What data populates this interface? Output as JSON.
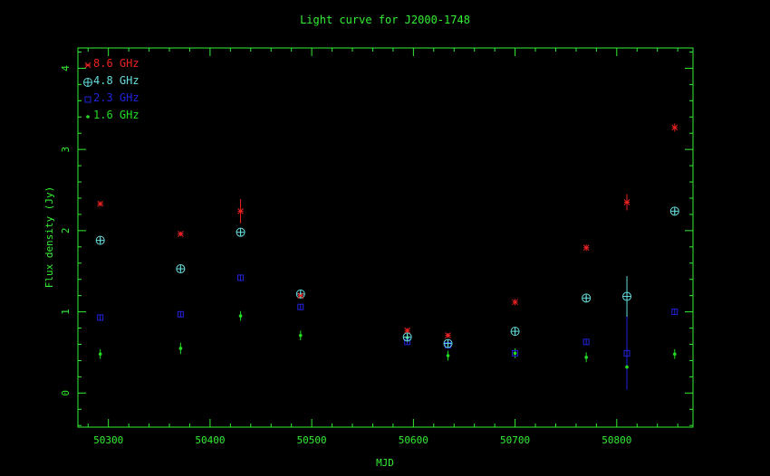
{
  "chart_data": {
    "type": "scatter",
    "title": "Light curve for J2000-1748",
    "xlabel": "MJD",
    "ylabel": "Flux density (Jy)",
    "xlim": [
      50270,
      50875
    ],
    "ylim": [
      -0.42,
      4.25
    ],
    "xticks": [
      50300,
      50400,
      50500,
      50600,
      50700,
      50800
    ],
    "yticks": [
      0,
      1,
      2,
      3,
      4
    ],
    "legend_position": "top-left",
    "series": [
      {
        "name": "8.6 GHz",
        "marker": "asterisk",
        "color": "#ee2222",
        "points": [
          {
            "x": 50292,
            "y": 2.33,
            "err": 0.03
          },
          {
            "x": 50371,
            "y": 1.96,
            "err": 0.03
          },
          {
            "x": 50430,
            "y": 2.24,
            "err": 0.15
          },
          {
            "x": 50489,
            "y": 1.2,
            "err": 0.03
          },
          {
            "x": 50594,
            "y": 0.77,
            "err": 0.03
          },
          {
            "x": 50634,
            "y": 0.71,
            "err": 0.03
          },
          {
            "x": 50700,
            "y": 1.12,
            "err": 0.04
          },
          {
            "x": 50770,
            "y": 1.79,
            "err": 0.04
          },
          {
            "x": 50810,
            "y": 2.35,
            "err": 0.1
          },
          {
            "x": 50857,
            "y": 3.27,
            "err": 0.05
          }
        ]
      },
      {
        "name": "4.8 GHz",
        "marker": "circle-cross",
        "color": "#66dddd",
        "points": [
          {
            "x": 50292,
            "y": 1.88,
            "err": 0.03
          },
          {
            "x": 50371,
            "y": 1.53,
            "err": 0.03
          },
          {
            "x": 50430,
            "y": 1.98,
            "err": 0.03
          },
          {
            "x": 50489,
            "y": 1.22,
            "err": 0.03
          },
          {
            "x": 50594,
            "y": 0.69,
            "err": 0.03
          },
          {
            "x": 50634,
            "y": 0.61,
            "err": 0.03
          },
          {
            "x": 50700,
            "y": 0.76,
            "err": 0.03
          },
          {
            "x": 50770,
            "y": 1.17,
            "err": 0.03
          },
          {
            "x": 50810,
            "y": 1.19,
            "err": 0.25
          },
          {
            "x": 50857,
            "y": 2.24,
            "err": 0.03
          }
        ]
      },
      {
        "name": "2.3 GHz",
        "marker": "square",
        "color": "#2222dd",
        "points": [
          {
            "x": 50292,
            "y": 0.93,
            "err": 0.03
          },
          {
            "x": 50371,
            "y": 0.97,
            "err": 0.03
          },
          {
            "x": 50430,
            "y": 1.42,
            "err": 0.03
          },
          {
            "x": 50489,
            "y": 1.06,
            "err": 0.03
          },
          {
            "x": 50594,
            "y": 0.63,
            "err": 0.03
          },
          {
            "x": 50634,
            "y": 0.59,
            "err": 0.03
          },
          {
            "x": 50700,
            "y": 0.49,
            "err": 0.03
          },
          {
            "x": 50770,
            "y": 0.63,
            "err": 0.03
          },
          {
            "x": 50810,
            "y": 0.49,
            "err": 0.45
          },
          {
            "x": 50857,
            "y": 1.0,
            "err": 0.03
          }
        ]
      },
      {
        "name": "1.6 GHz",
        "marker": "dot",
        "color": "#22dd22",
        "points": [
          {
            "x": 50292,
            "y": 0.48,
            "err": 0.06
          },
          {
            "x": 50371,
            "y": 0.55,
            "err": 0.07
          },
          {
            "x": 50430,
            "y": 0.95,
            "err": 0.06
          },
          {
            "x": 50489,
            "y": 0.71,
            "err": 0.06
          },
          {
            "x": 50594,
            "y": 0.68,
            "err": 0.06
          },
          {
            "x": 50634,
            "y": 0.46,
            "err": 0.06
          },
          {
            "x": 50700,
            "y": 0.49,
            "err": 0.06
          },
          {
            "x": 50770,
            "y": 0.44,
            "err": 0.06
          },
          {
            "x": 50810,
            "y": 0.32,
            "err": 0.03
          },
          {
            "x": 50857,
            "y": 0.48,
            "err": 0.06
          }
        ]
      }
    ]
  }
}
